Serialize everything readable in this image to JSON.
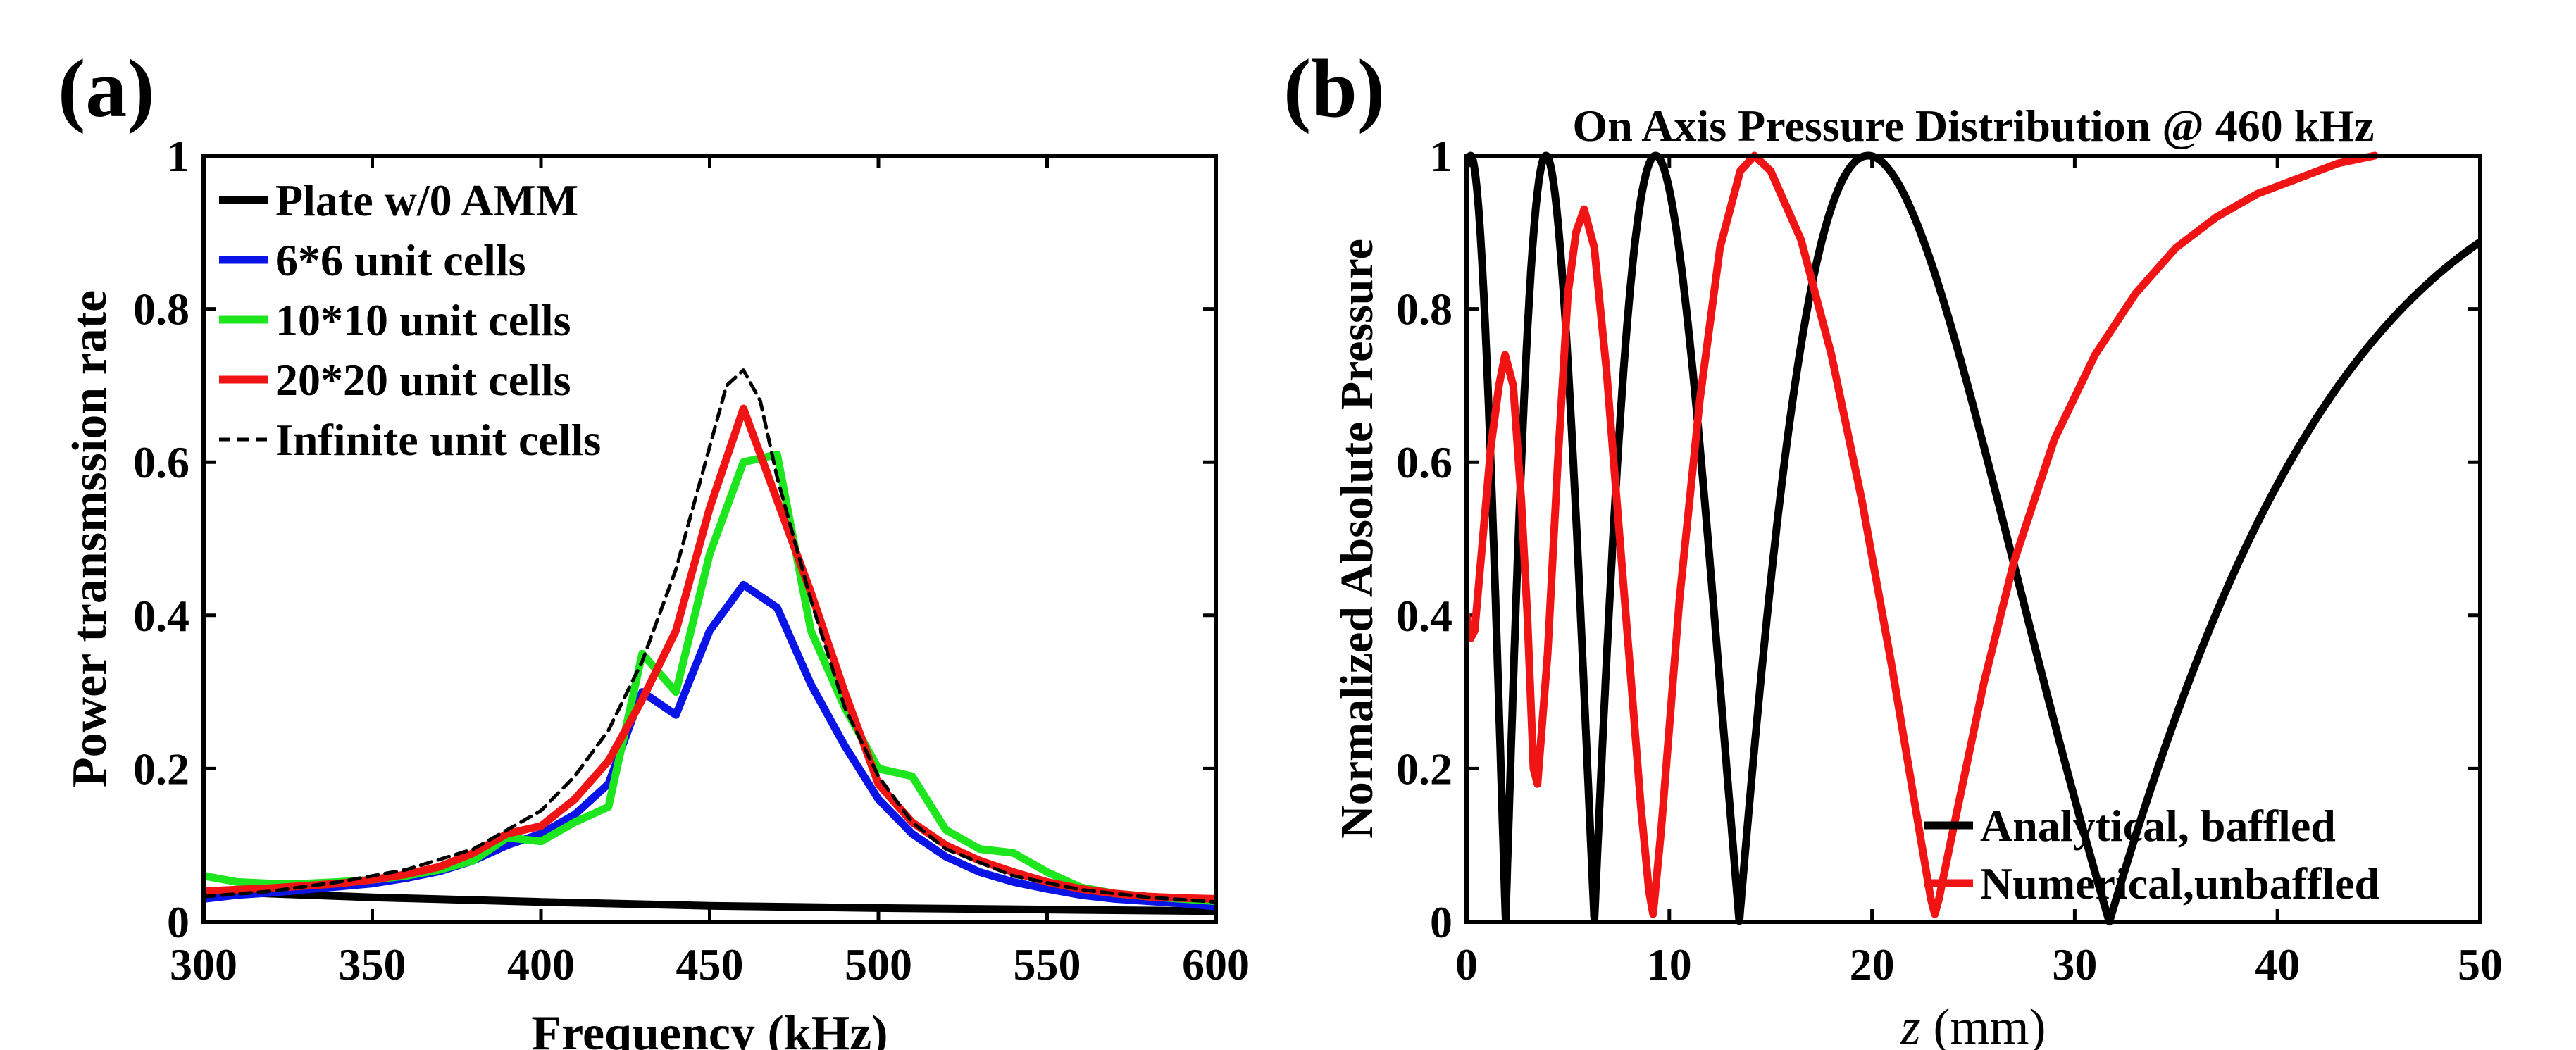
{
  "colors": {
    "black": "#000000",
    "blue": "#0a14e6",
    "green": "#1ee61e",
    "red": "#f01414"
  },
  "chart_data": [
    {
      "panel_label": "(a)",
      "type": "line",
      "title": "",
      "xlabel": "Frequency (kHz)",
      "ylabel": "Power transmssion rate",
      "xlim": [
        300,
        600
      ],
      "ylim": [
        0,
        1
      ],
      "xticks": [
        300,
        350,
        400,
        450,
        500,
        550,
        600
      ],
      "yticks": [
        0,
        0.2,
        0.4,
        0.6,
        0.8,
        1
      ],
      "xtick_labels": [
        "300",
        "350",
        "400",
        "450",
        "500",
        "550",
        "600"
      ],
      "ytick_labels": [
        "0",
        "0.2",
        "0.4",
        "0.6",
        "0.8",
        "1"
      ],
      "legend_position": "top-left",
      "series": [
        {
          "name": "Plate w/0 AMM",
          "color": "#000000",
          "dashed": false,
          "x": [
            300,
            350,
            400,
            450,
            500,
            550,
            600
          ],
          "values": [
            0.04,
            0.032,
            0.026,
            0.021,
            0.018,
            0.016,
            0.014
          ]
        },
        {
          "name": "6*6 unit cells",
          "color": "#0a14e6",
          "dashed": false,
          "x": [
            300,
            310,
            320,
            330,
            340,
            350,
            360,
            370,
            380,
            390,
            400,
            410,
            420,
            430,
            440,
            450,
            460,
            470,
            480,
            490,
            500,
            510,
            520,
            530,
            540,
            550,
            560,
            570,
            580,
            590,
            600
          ],
          "values": [
            0.03,
            0.035,
            0.038,
            0.042,
            0.046,
            0.05,
            0.057,
            0.066,
            0.08,
            0.1,
            0.115,
            0.14,
            0.18,
            0.3,
            0.27,
            0.38,
            0.44,
            0.41,
            0.31,
            0.23,
            0.16,
            0.115,
            0.085,
            0.065,
            0.052,
            0.043,
            0.035,
            0.03,
            0.027,
            0.024,
            0.02
          ]
        },
        {
          "name": "10*10 unit cells",
          "color": "#1ee61e",
          "dashed": false,
          "x": [
            300,
            310,
            320,
            330,
            340,
            350,
            360,
            370,
            380,
            390,
            400,
            410,
            420,
            430,
            440,
            450,
            460,
            470,
            480,
            490,
            500,
            510,
            520,
            530,
            540,
            550,
            560,
            570,
            580,
            590,
            600
          ],
          "values": [
            0.06,
            0.052,
            0.05,
            0.05,
            0.052,
            0.055,
            0.06,
            0.068,
            0.08,
            0.11,
            0.105,
            0.13,
            0.15,
            0.35,
            0.3,
            0.48,
            0.6,
            0.61,
            0.38,
            0.28,
            0.2,
            0.19,
            0.12,
            0.095,
            0.09,
            0.065,
            0.045,
            0.037,
            0.033,
            0.03,
            0.027
          ]
        },
        {
          "name": "20*20 unit cells",
          "color": "#f01414",
          "dashed": false,
          "x": [
            300,
            310,
            320,
            330,
            340,
            350,
            360,
            370,
            380,
            390,
            400,
            410,
            420,
            430,
            440,
            450,
            460,
            470,
            480,
            490,
            500,
            510,
            520,
            530,
            540,
            550,
            560,
            570,
            580,
            590,
            600
          ],
          "values": [
            0.04,
            0.042,
            0.044,
            0.047,
            0.05,
            0.055,
            0.062,
            0.072,
            0.09,
            0.115,
            0.125,
            0.16,
            0.21,
            0.29,
            0.38,
            0.54,
            0.67,
            0.55,
            0.43,
            0.3,
            0.18,
            0.13,
            0.1,
            0.08,
            0.065,
            0.052,
            0.043,
            0.037,
            0.033,
            0.031,
            0.03
          ]
        },
        {
          "name": "Infinite unit cells",
          "color": "#000000",
          "dashed": true,
          "x": [
            300,
            320,
            340,
            360,
            380,
            400,
            410,
            420,
            430,
            440,
            450,
            455,
            460,
            465,
            470,
            480,
            490,
            500,
            510,
            520,
            540,
            560,
            580,
            600
          ],
          "values": [
            0.033,
            0.04,
            0.052,
            0.068,
            0.095,
            0.145,
            0.19,
            0.25,
            0.34,
            0.46,
            0.62,
            0.7,
            0.72,
            0.68,
            0.58,
            0.42,
            0.28,
            0.19,
            0.13,
            0.095,
            0.06,
            0.042,
            0.032,
            0.026
          ]
        }
      ]
    },
    {
      "panel_label": "(b)",
      "type": "line",
      "title": "On Axis Pressure Distribution @ 460 kHz",
      "xlabel_var": "z",
      "xlabel_unit": "(mm)",
      "ylabel": "Normalized Absolute Pressure",
      "xlim": [
        0,
        50
      ],
      "ylim": [
        0,
        1
      ],
      "xticks": [
        0,
        10,
        20,
        30,
        40,
        50
      ],
      "yticks": [
        0,
        0.2,
        0.4,
        0.6,
        0.8,
        1
      ],
      "xtick_labels": [
        "0",
        "10",
        "20",
        "30",
        "40",
        "50"
      ],
      "ytick_labels": [
        "0",
        "0.2",
        "0.4",
        "0.6",
        "0.8",
        "1"
      ],
      "legend_position": "bottom-right",
      "series": [
        {
          "name": "Analytical, baffled",
          "color": "#000000",
          "dashed": false,
          "model": "analytical",
          "aperture_radius_mm": 14.6,
          "wavelength_mm": 3.2
        },
        {
          "name": "Numerical,unbaffled",
          "color": "#f01414",
          "dashed": false,
          "x": [
            0,
            0.2,
            0.4,
            0.8,
            1.2,
            1.6,
            1.9,
            2.3,
            2.7,
            3.0,
            3.3,
            3.5,
            4.0,
            4.5,
            5.0,
            5.4,
            5.8,
            6.3,
            6.9,
            7.5,
            8.1,
            8.6,
            9.0,
            9.2,
            9.6,
            10.5,
            11.5,
            12.5,
            13.5,
            14.2,
            15.0,
            16.5,
            18.0,
            19.5,
            21.0,
            22.2,
            22.9,
            23.1,
            23.3,
            24.0,
            25.5,
            27.0,
            29.0,
            31.0,
            33.0,
            35.0,
            37.0,
            39.0,
            41.0,
            43.0,
            44.8
          ],
          "values": [
            0.4,
            0.37,
            0.38,
            0.5,
            0.62,
            0.7,
            0.74,
            0.7,
            0.55,
            0.4,
            0.2,
            0.18,
            0.35,
            0.6,
            0.82,
            0.9,
            0.93,
            0.88,
            0.72,
            0.52,
            0.32,
            0.15,
            0.04,
            0.01,
            0.12,
            0.42,
            0.68,
            0.88,
            0.98,
            1.0,
            0.98,
            0.89,
            0.74,
            0.55,
            0.33,
            0.14,
            0.03,
            0.01,
            0.03,
            0.12,
            0.31,
            0.47,
            0.63,
            0.74,
            0.82,
            0.88,
            0.92,
            0.95,
            0.97,
            0.99,
            1.0
          ]
        }
      ]
    }
  ]
}
